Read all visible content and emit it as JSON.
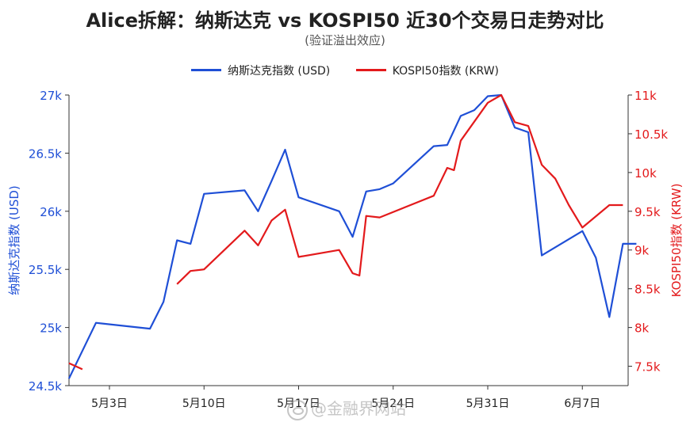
{
  "header": {
    "title": "Alice拆解：纳斯达克 vs KOSPI50 近30个交易日走势对比",
    "subtitle": "(验证溢出效应)"
  },
  "watermark": {
    "text": "@金融界网站"
  },
  "chart_data": {
    "type": "line",
    "title": "Alice拆解：纳斯达克 vs KOSPI50 近30个交易日走势对比",
    "subtitle": "(验证溢出效应)",
    "x_ticks": [
      "5月3日",
      "5月10日",
      "5月17日",
      "5月24日",
      "5月31日",
      "6月7日"
    ],
    "legend_position": "top-center",
    "grid": false,
    "left_axis": {
      "label": "纳斯达克指数 (USD)",
      "ylim": [
        24500,
        27000
      ],
      "ticks": [
        24500,
        25000,
        25500,
        26000,
        26500,
        27000
      ],
      "tick_labels": [
        "24.5k",
        "25k",
        "25.5k",
        "26k",
        "26.5k",
        "27k"
      ],
      "color": "#1f4fd6"
    },
    "right_axis": {
      "label": "KOSPI50指数 (KRW)",
      "ylim": [
        7250,
        11000
      ],
      "ticks": [
        7500,
        8000,
        8500,
        9000,
        9500,
        10000,
        10500,
        11000
      ],
      "tick_labels": [
        "7.5k",
        "8k",
        "8.5k",
        "9k",
        "9.5k",
        "10k",
        "10.5k",
        "11k"
      ],
      "color": "#e31a1c"
    },
    "series": [
      {
        "name": "纳斯达克指数 (USD)",
        "axis": "left",
        "color": "#1f4fd6",
        "points": [
          [
            "2025-04-30",
            24560
          ],
          [
            "2025-05-02",
            25040
          ],
          [
            "2025-05-06",
            24990
          ],
          [
            "2025-05-07",
            25220
          ],
          [
            "2025-05-08",
            25750
          ],
          [
            "2025-05-09",
            25720
          ],
          [
            "2025-05-10",
            26150
          ],
          [
            "2025-05-13",
            26180
          ],
          [
            "2025-05-14",
            26000
          ],
          [
            "2025-05-15",
            26260
          ],
          [
            "2025-05-16",
            26530
          ],
          [
            "2025-05-17",
            26120
          ],
          [
            "2025-05-20",
            26000
          ],
          [
            "2025-05-21",
            25780
          ],
          [
            "2025-05-22",
            26170
          ],
          [
            "2025-05-23",
            26190
          ],
          [
            "2025-05-24",
            26240
          ],
          [
            "2025-05-27",
            26560
          ],
          [
            "2025-05-28",
            26570
          ],
          [
            "2025-05-29",
            26820
          ],
          [
            "2025-05-30",
            26870
          ],
          [
            "2025-05-31",
            26990
          ],
          [
            "2025-06-01",
            27000
          ],
          [
            "2025-06-02",
            26720
          ],
          [
            "2025-06-03",
            26680
          ],
          [
            "2025-06-04",
            25620
          ],
          [
            "2025-06-07",
            25830
          ],
          [
            "2025-06-08",
            25600
          ],
          [
            "2025-06-09",
            25090
          ],
          [
            "2025-06-10",
            25720
          ],
          [
            "2025-06-11",
            25720
          ]
        ]
      },
      {
        "name": "KOSPI50指数 (KRW)",
        "axis": "right",
        "color": "#e31a1c",
        "segments": [
          [
            [
              "2025-04-30",
              7540
            ],
            [
              "2025-05-01",
              7460
            ]
          ],
          [
            [
              "2025-05-08",
              8560
            ],
            [
              "2025-05-09",
              8730
            ],
            [
              "2025-05-10",
              8750
            ],
            [
              "2025-05-13",
              9250
            ],
            [
              "2025-05-14",
              9060
            ],
            [
              "2025-05-15",
              9380
            ],
            [
              "2025-05-16",
              9520
            ],
            [
              "2025-05-17",
              8910
            ],
            [
              "2025-05-20",
              9000
            ],
            [
              "2025-05-21",
              8700
            ],
            [
              "2025-05-21.5",
              8670
            ],
            [
              "2025-05-22",
              9440
            ],
            [
              "2025-05-23",
              9420
            ],
            [
              "2025-05-27",
              9700
            ],
            [
              "2025-05-28",
              10060
            ],
            [
              "2025-05-28.5",
              10030
            ],
            [
              "2025-05-29",
              10410
            ],
            [
              "2025-05-31",
              10900
            ],
            [
              "2025-06-01",
              11000
            ],
            [
              "2025-06-02",
              10650
            ],
            [
              "2025-06-03",
              10600
            ],
            [
              "2025-06-04",
              10100
            ],
            [
              "2025-06-05",
              9920
            ],
            [
              "2025-06-06",
              9580
            ],
            [
              "2025-06-07",
              9290
            ],
            [
              "2025-06-09",
              9580
            ],
            [
              "2025-06-10",
              9580
            ]
          ]
        ]
      }
    ]
  }
}
